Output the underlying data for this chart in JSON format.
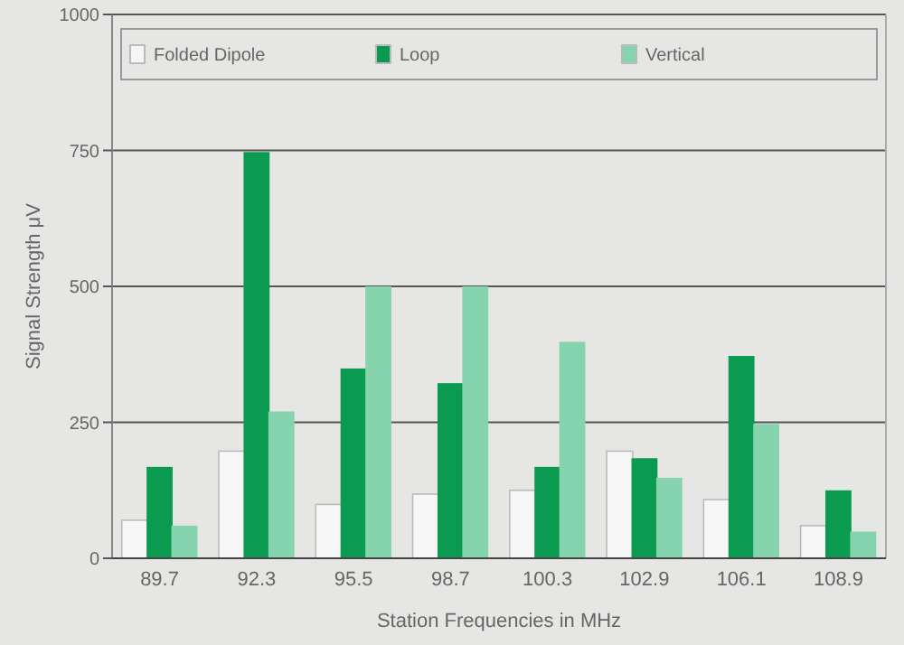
{
  "chart_data": {
    "type": "bar",
    "xlabel": "Station Frequencies in MHz",
    "ylabel": "Signal Strength μV",
    "categories": [
      "89.7",
      "92.3",
      "95.5",
      "98.7",
      "100.3",
      "102.9",
      "106.1",
      "108.9"
    ],
    "series": [
      {
        "name": "Folded Dipole",
        "color": "#f6f6f6",
        "values": [
          70,
          197,
          99,
          118,
          125,
          197,
          108,
          60
        ]
      },
      {
        "name": "Loop",
        "color": "#0a9a50",
        "values": [
          168,
          747,
          349,
          322,
          168,
          184,
          372,
          125
        ]
      },
      {
        "name": "Vertical",
        "color": "#86d4ad",
        "values": [
          60,
          270,
          500,
          500,
          398,
          148,
          247,
          49
        ]
      }
    ],
    "ylim": [
      0,
      1000
    ],
    "yticks": [
      0,
      250,
      500,
      750,
      1000
    ],
    "grid": "y",
    "legend": "top"
  }
}
